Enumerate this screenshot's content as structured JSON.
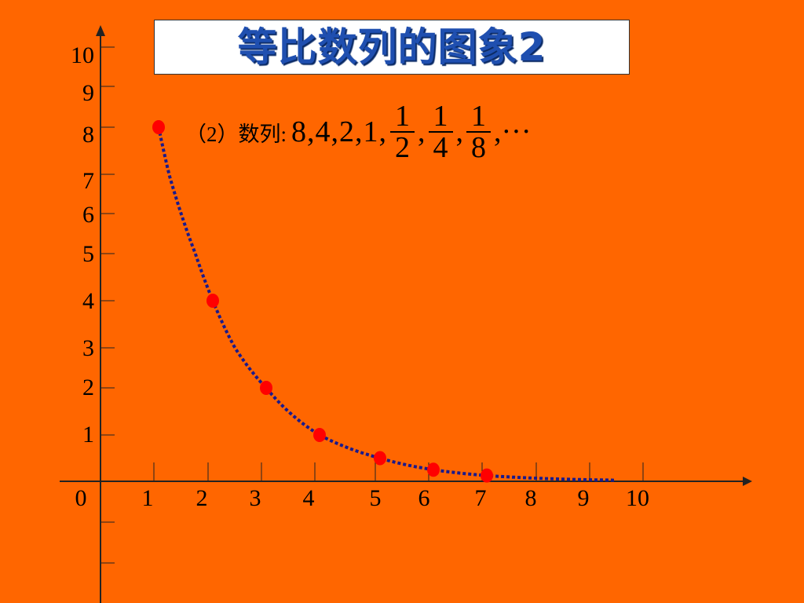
{
  "title": "等比数列的图象2",
  "sequence": {
    "label": "（2）数列:",
    "terms_text": "8,4,2,1,",
    "fractions": [
      {
        "num": "1",
        "den": "2"
      },
      {
        "num": "1",
        "den": "4"
      },
      {
        "num": "1",
        "den": "8"
      }
    ],
    "separator": ",",
    "ellipsis": ",···"
  },
  "colors": {
    "background": "#ff6600",
    "title": "#1f4fb0",
    "points": "#ff0000",
    "curve": "#1a1a8c"
  },
  "chart_data": {
    "type": "scatter",
    "x_ticks": [
      "0",
      "1",
      "2",
      "3",
      "4",
      "5",
      "6",
      "7",
      "8",
      "9",
      "10"
    ],
    "y_ticks": [
      "1",
      "2",
      "3",
      "4",
      "5",
      "6",
      "7",
      "8",
      "9",
      "10"
    ],
    "xlim": [
      0,
      10
    ],
    "ylim": [
      0,
      10
    ],
    "grid": false,
    "points": [
      {
        "x": 1,
        "y": 8
      },
      {
        "x": 2,
        "y": 4
      },
      {
        "x": 3,
        "y": 2
      },
      {
        "x": 4,
        "y": 1
      },
      {
        "x": 5,
        "y": 0.5
      },
      {
        "x": 6,
        "y": 0.25
      },
      {
        "x": 7,
        "y": 0.125
      }
    ],
    "curve": {
      "style": "dotted",
      "formula": "y = 16·(1/2)^x",
      "x_range": [
        1,
        9.4
      ]
    }
  }
}
